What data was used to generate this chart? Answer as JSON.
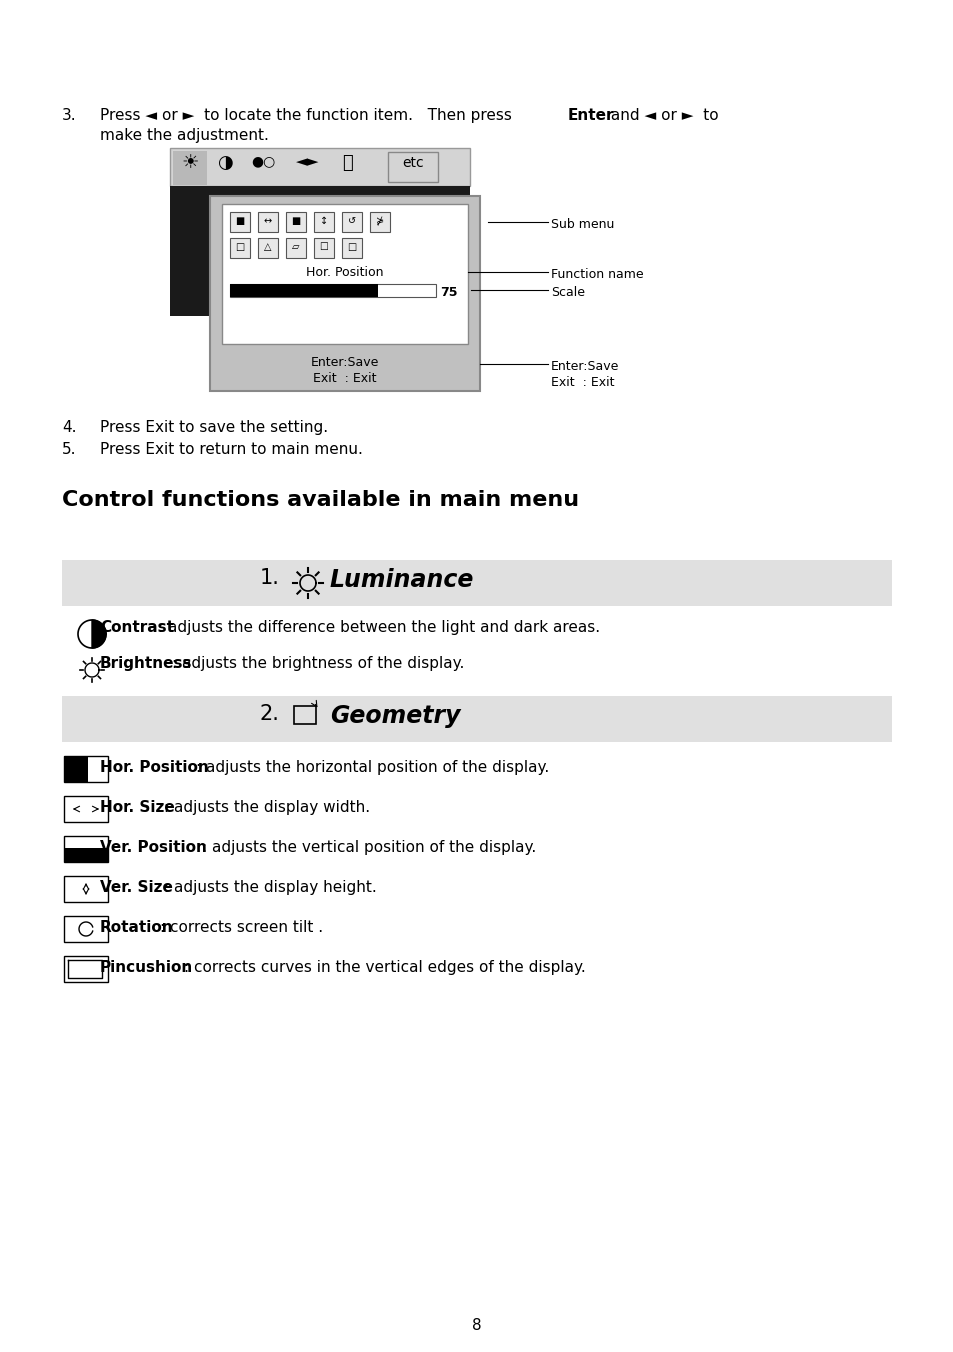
{
  "bg_color": "#ffffff",
  "page_number": "8",
  "header_bg": "#e0e0e0",
  "contrast_bold": "Contrast",
  "contrast_text": ": adjusts the difference between the light and dark areas.",
  "brightness_bold": "Brightness",
  "brightness_text": ": adjusts the brightness of the display.",
  "horpos_bold": "Hor. Position",
  "horpos_text": ": adjusts the horizontal position of the display.",
  "horsize_bold": "Hor. Size",
  "horsize_text": ": adjusts the display width.",
  "verpos_bold": "Ver. Position",
  "verpos_text": ": adjusts the vertical position of the display.",
  "versize_bold": "Ver. Size",
  "versize_text": ": adjusts the display height.",
  "rotation_bold": "Rotation",
  "rotation_text": ": corrects screen tilt .",
  "pincushion_bold": "Pincushion",
  "pincushion_text": ": corrects curves in the vertical edges of the display.",
  "section_title": "Control functions available in main menu",
  "luminance_label": "Luminance",
  "geometry_label": "Geometry"
}
